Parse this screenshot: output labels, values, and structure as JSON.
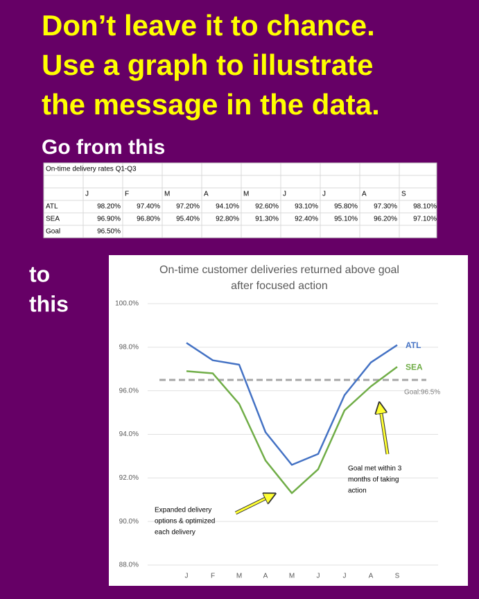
{
  "header": {
    "title_lines": [
      "Don’t leave it to chance.",
      "Use a graph to illustrate",
      "the message in the data."
    ],
    "from_label": "Go from this",
    "to_label": [
      "to",
      "this"
    ]
  },
  "table": {
    "title": "On-time delivery rates Q1-Q3",
    "months": [
      "J",
      "F",
      "M",
      "A",
      "M",
      "J",
      "J",
      "A",
      "S"
    ],
    "rows": [
      {
        "label": "ATL",
        "values": [
          "98.20%",
          "97.40%",
          "97.20%",
          "94.10%",
          "92.60%",
          "93.10%",
          "95.80%",
          "97.30%",
          "98.10%"
        ]
      },
      {
        "label": "SEA",
        "values": [
          "96.90%",
          "96.80%",
          "95.40%",
          "92.80%",
          "91.30%",
          "92.40%",
          "95.10%",
          "96.20%",
          "97.10%"
        ]
      },
      {
        "label": "Goal",
        "values": [
          "96.50%"
        ]
      }
    ]
  },
  "chart_data": {
    "type": "line",
    "title": [
      "On-time customer deliveries returned above goal",
      "after focused action"
    ],
    "categories": [
      "J",
      "F",
      "M",
      "A",
      "M",
      "J",
      "J",
      "A",
      "S"
    ],
    "series": [
      {
        "name": "ATL",
        "color": "#4472c4",
        "values": [
          98.2,
          97.4,
          97.2,
          94.1,
          92.6,
          93.1,
          95.8,
          97.3,
          98.1
        ]
      },
      {
        "name": "SEA",
        "color": "#70ad47",
        "values": [
          96.9,
          96.8,
          95.4,
          92.8,
          91.3,
          92.4,
          95.1,
          96.2,
          97.1
        ]
      }
    ],
    "reference_line": {
      "value": 96.5,
      "label": "Goal:96.5%",
      "color": "#a6a6a6"
    },
    "ylim": [
      88,
      100
    ],
    "yticks": [
      {
        "value": 88,
        "label": "88.0%"
      },
      {
        "value": 90,
        "label": "90.0%"
      },
      {
        "value": 92,
        "label": "92.0%"
      },
      {
        "value": 94,
        "label": "94.0%"
      },
      {
        "value": 96,
        "label": "96.0%"
      },
      {
        "value": 98,
        "label": "98.0%"
      },
      {
        "value": 100,
        "label": "100.0%"
      }
    ],
    "grid": true,
    "annotations": [
      {
        "text": [
          "Expanded delivery",
          "options & optimized",
          "each delivery"
        ]
      },
      {
        "text": [
          "Goal met within 3",
          "months of taking",
          "action"
        ]
      }
    ]
  }
}
